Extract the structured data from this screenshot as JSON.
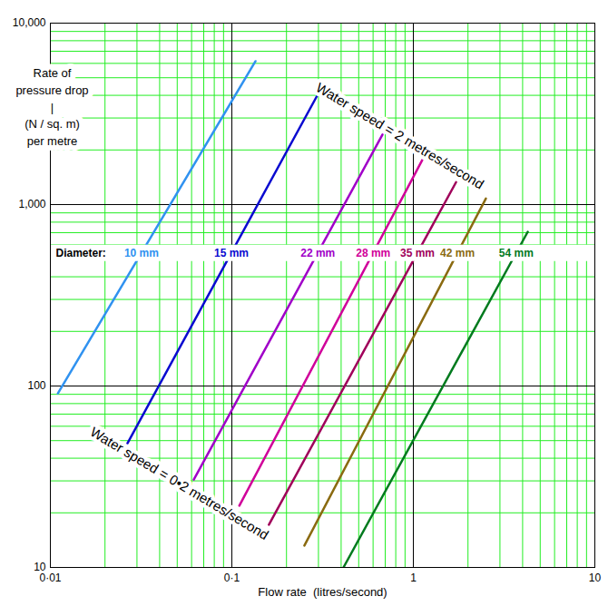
{
  "chart_data": {
    "type": "line",
    "log": true,
    "grid": true,
    "ylabel": "Rate of\npressure drop\n|\n(N / sq. m)\nper metre",
    "xlabel": "Flow rate  (litres/second)",
    "xlim": [
      0.01,
      10
    ],
    "ylim": [
      10,
      10000
    ],
    "xticks": [
      {
        "value": 0.01,
        "label": "0·01"
      },
      {
        "value": 0.1,
        "label": "0·1"
      },
      1,
      10
    ],
    "yticks": [
      10,
      100,
      {
        "value": 1000,
        "label": "1,000"
      },
      {
        "value": 10000,
        "label": "10,000"
      }
    ],
    "xgrid": [
      0.02,
      0.03,
      0.04,
      0.05,
      0.06,
      0.07,
      0.08,
      0.09,
      0.2,
      0.3,
      0.4,
      0.5,
      0.6,
      0.7,
      0.8,
      0.9,
      2,
      3,
      4,
      5,
      6,
      7,
      8,
      9
    ],
    "ygrid": [
      20,
      30,
      40,
      50,
      60,
      70,
      80,
      90,
      200,
      300,
      400,
      500,
      600,
      700,
      800,
      900,
      2000,
      3000,
      4000,
      5000,
      6000,
      7000,
      8000,
      9000
    ],
    "label_title": "Diameter:",
    "annotations": [
      {
        "text": "Water speed = 2 metres/second"
      },
      {
        "text": "Water speed = 0•2 metres/second"
      }
    ],
    "series": [
      {
        "name": "10 mm",
        "color": "#3092f0",
        "x": [
          0.011,
          0.135
        ],
        "values": [
          91,
          6170
        ]
      },
      {
        "name": "15 mm",
        "color": "#0a0ad0",
        "x": [
          0.0266,
          0.295
        ],
        "values": [
          48.4,
          3980
        ]
      },
      {
        "name": "22 mm",
        "color": "#a000c8",
        "x": [
          0.0617,
          0.676
        ],
        "values": [
          30.5,
          2430
        ]
      },
      {
        "name": "28 mm",
        "color": "#d0009a",
        "x": [
          0.11,
          1.12
        ],
        "values": [
          21.9,
          1760
        ]
      },
      {
        "name": "35 mm",
        "color": "#a0005a",
        "x": [
          0.16,
          1.72
        ],
        "values": [
          17.2,
          1330
        ]
      },
      {
        "name": "42 mm",
        "color": "#8a6a10",
        "x": [
          0.251,
          2.51
        ],
        "values": [
          13.2,
          1080
        ]
      },
      {
        "name": "54 mm",
        "color": "#007a1e",
        "x": [
          0.412,
          4.27
        ],
        "values": [
          10,
          708
        ]
      }
    ]
  }
}
